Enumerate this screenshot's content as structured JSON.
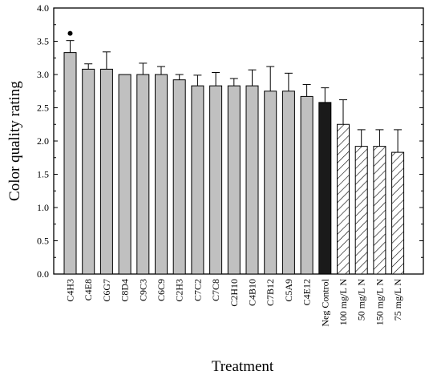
{
  "chart_data": {
    "type": "bar",
    "xlabel": "Treatment",
    "ylabel": "Color quality rating",
    "ylim": [
      0,
      4.0
    ],
    "y_ticks": [
      "0.0",
      "0.5",
      "1.0",
      "1.5",
      "2.0",
      "2.5",
      "3.0",
      "3.5",
      "4.0"
    ],
    "grid": false,
    "categories": [
      "C4H3",
      "C4E8",
      "C6G7",
      "C8D4",
      "C9C3",
      "C6C9",
      "C2H3",
      "C7C2",
      "C7C8",
      "C2H10",
      "C4B10",
      "C7B12",
      "C5A9",
      "C4E12",
      "Neg Control",
      "100 mg/L N",
      "50 mg/L N",
      "150 mg/L N",
      "75 mg/L N"
    ],
    "values": [
      3.33,
      3.08,
      3.08,
      3.0,
      3.0,
      3.0,
      2.92,
      2.83,
      2.83,
      2.83,
      2.83,
      2.75,
      2.75,
      2.67,
      2.58,
      2.25,
      1.92,
      1.92,
      1.83
    ],
    "errors": [
      0.18,
      0.08,
      0.26,
      0.0,
      0.17,
      0.12,
      0.08,
      0.16,
      0.2,
      0.11,
      0.24,
      0.37,
      0.27,
      0.18,
      0.22,
      0.37,
      0.25,
      0.25,
      0.34
    ],
    "fills": [
      "solid-gray",
      "solid-gray",
      "solid-gray",
      "solid-gray",
      "solid-gray",
      "solid-gray",
      "solid-gray",
      "solid-gray",
      "solid-gray",
      "solid-gray",
      "solid-gray",
      "solid-gray",
      "solid-gray",
      "solid-gray",
      "solid-black",
      "hatched",
      "hatched",
      "hatched",
      "hatched"
    ],
    "colors": {
      "gray": "#c0c0c0",
      "black": "#1a1a1a",
      "hatch_bg": "#ffffff",
      "stroke": "#000000"
    },
    "annotations": [
      {
        "category": "C4H3",
        "marker": "dot"
      }
    ]
  }
}
